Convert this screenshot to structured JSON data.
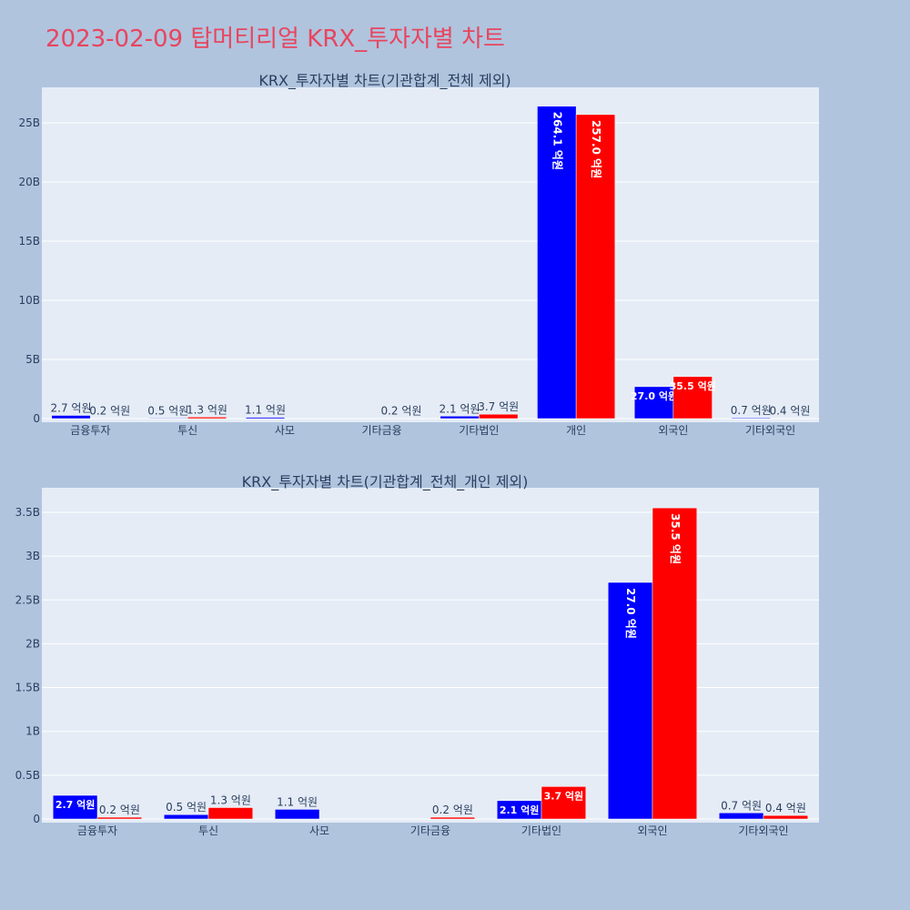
{
  "page": {
    "title": "2023-02-09 탑머티리얼 KRX_투자자별 차트"
  },
  "colors": {
    "buy": "#0000ff",
    "sell": "#ff0000",
    "plot_bg": "#e5ecf6",
    "paper_bg": "#b0c4de",
    "title": "#e8455f",
    "grid": "#ffffff",
    "text": "#2a3f5f"
  },
  "chart_data": [
    {
      "type": "bar",
      "title": "KRX_투자자별 차트(기관합계_전체 제외)",
      "categories": [
        "금융투자",
        "투신",
        "사모",
        "기타금융",
        "기타법인",
        "개인",
        "외국인",
        "기타외국인"
      ],
      "series": [
        {
          "values": [
            270000000,
            50000000,
            110000000,
            0,
            210000000,
            26410000000,
            2700000000,
            70000000
          ],
          "labels": [
            "2.7 억원",
            "0.5 억원",
            "1.1 억원",
            "",
            "2.1 억원",
            "264.1 억원",
            "27.0 억원",
            "0.7 억원"
          ]
        },
        {
          "values": [
            20000000,
            130000000,
            0,
            20000000,
            370000000,
            25700000000,
            3550000000,
            40000000
          ],
          "labels": [
            "0.2 억원",
            "1.3 억원",
            "",
            "0.2 억원",
            "3.7 억원",
            "257.0 억원",
            "35.5 억원",
            "0.4 억원"
          ]
        }
      ],
      "yticks": [
        0,
        5000000000,
        10000000000,
        15000000000,
        20000000000,
        25000000000
      ],
      "ytick_labels": [
        "0",
        "5B",
        "10B",
        "15B",
        "20B",
        "25B"
      ],
      "ylim": [
        0,
        28000000000
      ],
      "grid": true
    },
    {
      "type": "bar",
      "title": "KRX_투자자별 차트(기관합계_전체_개인 제외)",
      "categories": [
        "금융투자",
        "투신",
        "사모",
        "기타금융",
        "기타법인",
        "외국인",
        "기타외국인"
      ],
      "series": [
        {
          "values": [
            270000000,
            50000000,
            110000000,
            0,
            210000000,
            2700000000,
            70000000
          ],
          "labels": [
            "2.7 억원",
            "0.5 억원",
            "1.1 억원",
            "",
            "2.1 억원",
            "27.0 억원",
            "0.7 억원"
          ]
        },
        {
          "values": [
            20000000,
            130000000,
            0,
            20000000,
            370000000,
            3550000000,
            40000000
          ],
          "labels": [
            "0.2 억원",
            "1.3 억원",
            "",
            "0.2 억원",
            "3.7 억원",
            "35.5 억원",
            "0.4 억원"
          ]
        }
      ],
      "yticks": [
        0,
        500000000,
        1000000000,
        1500000000,
        2000000000,
        2500000000,
        3000000000,
        3500000000
      ],
      "ytick_labels": [
        "0",
        "0.5B",
        "1B",
        "1.5B",
        "2B",
        "2.5B",
        "3B",
        "3.5B"
      ],
      "ylim": [
        0,
        3780000000
      ],
      "grid": true
    }
  ]
}
